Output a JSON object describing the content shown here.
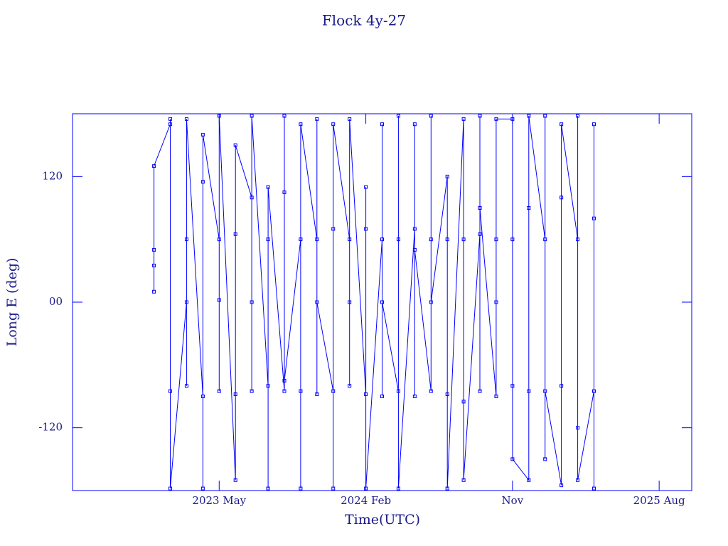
{
  "chart_data": {
    "type": "line",
    "title": "Flock 4y-27",
    "x_label": "Time(UTC)",
    "y_label": "Long E (deg)",
    "color": "#0000ff",
    "markers": true,
    "xlim": [
      "2022-08",
      "2025-10"
    ],
    "ylim": [
      -180,
      180
    ],
    "xticks": [
      {
        "value": "2023-05",
        "label": "2023 May"
      },
      {
        "value": "2024-02",
        "label": "2024 Feb"
      },
      {
        "value": "2024-11",
        "label": "Nov"
      },
      {
        "value": "2025-08",
        "label": "2025 Aug"
      }
    ],
    "yticks": [
      -120,
      {
        "value": 0,
        "label": "00"
      },
      120
    ],
    "x": [
      "2023-01",
      "2023-01",
      "2023-01",
      "2023-01",
      "2023-02",
      "2023-02",
      "2023-02",
      "2023-02",
      "2023-03",
      "2023-03",
      "2023-03",
      "2023-03",
      "2023-04",
      "2023-04",
      "2023-04",
      "2023-04",
      "2023-05",
      "2023-05",
      "2023-05",
      "2023-05",
      "2023-06",
      "2023-06",
      "2023-06",
      "2023-06",
      "2023-07",
      "2023-07",
      "2023-07",
      "2023-07",
      "2023-08",
      "2023-08",
      "2023-08",
      "2023-08",
      "2023-09",
      "2023-09",
      "2023-09",
      "2023-09",
      "2023-10",
      "2023-10",
      "2023-10",
      "2023-10",
      "2023-11",
      "2023-11",
      "2023-11",
      "2023-11",
      "2023-12",
      "2023-12",
      "2023-12",
      "2023-12",
      "2024-01",
      "2024-01",
      "2024-01",
      "2024-01",
      "2024-02",
      "2024-02",
      "2024-02",
      "2024-02",
      "2024-03",
      "2024-03",
      "2024-03",
      "2024-03",
      "2024-04",
      "2024-04",
      "2024-04",
      "2024-04",
      "2024-05",
      "2024-05",
      "2024-05",
      "2024-05",
      "2024-06",
      "2024-06",
      "2024-06",
      "2024-06",
      "2024-07",
      "2024-07",
      "2024-07",
      "2024-07",
      "2024-08",
      "2024-08",
      "2024-08",
      "2024-08",
      "2024-09",
      "2024-09",
      "2024-09",
      "2024-09",
      "2024-10",
      "2024-10",
      "2024-10",
      "2024-10",
      "2024-11",
      "2024-11",
      "2024-11",
      "2024-11",
      "2024-12",
      "2024-12",
      "2024-12",
      "2024-12",
      "2025-01",
      "2025-01",
      "2025-01",
      "2025-01",
      "2025-02",
      "2025-02",
      "2025-02",
      "2025-02",
      "2025-03",
      "2025-03",
      "2025-03",
      "2025-03",
      "2025-04",
      "2025-04",
      "2025-04",
      "2025-04"
    ],
    "values": [
      50,
      35,
      10,
      130,
      170,
      -85,
      175,
      -178,
      0,
      -80,
      60,
      175,
      -90,
      115,
      -178,
      160,
      60,
      -85,
      2,
      178,
      -170,
      65,
      -88,
      150,
      100,
      -85,
      0,
      178,
      -80,
      60,
      -178,
      110,
      -85,
      105,
      178,
      -75,
      60,
      -178,
      -85,
      170,
      60,
      -88,
      175,
      0,
      -85,
      70,
      -178,
      170,
      60,
      -80,
      0,
      175,
      -88,
      70,
      110,
      -178,
      60,
      -90,
      170,
      0,
      -85,
      60,
      178,
      -178,
      70,
      -90,
      170,
      50,
      -85,
      60,
      178,
      0,
      120,
      -88,
      60,
      -178,
      175,
      -95,
      60,
      -170,
      65,
      -85,
      178,
      90,
      -90,
      60,
      0,
      175,
      175,
      -80,
      60,
      -150,
      -170,
      90,
      -85,
      178,
      60,
      -150,
      178,
      -85,
      -175,
      100,
      -80,
      170,
      60,
      -120,
      178,
      -170,
      -85,
      80,
      170,
      -178
    ]
  }
}
